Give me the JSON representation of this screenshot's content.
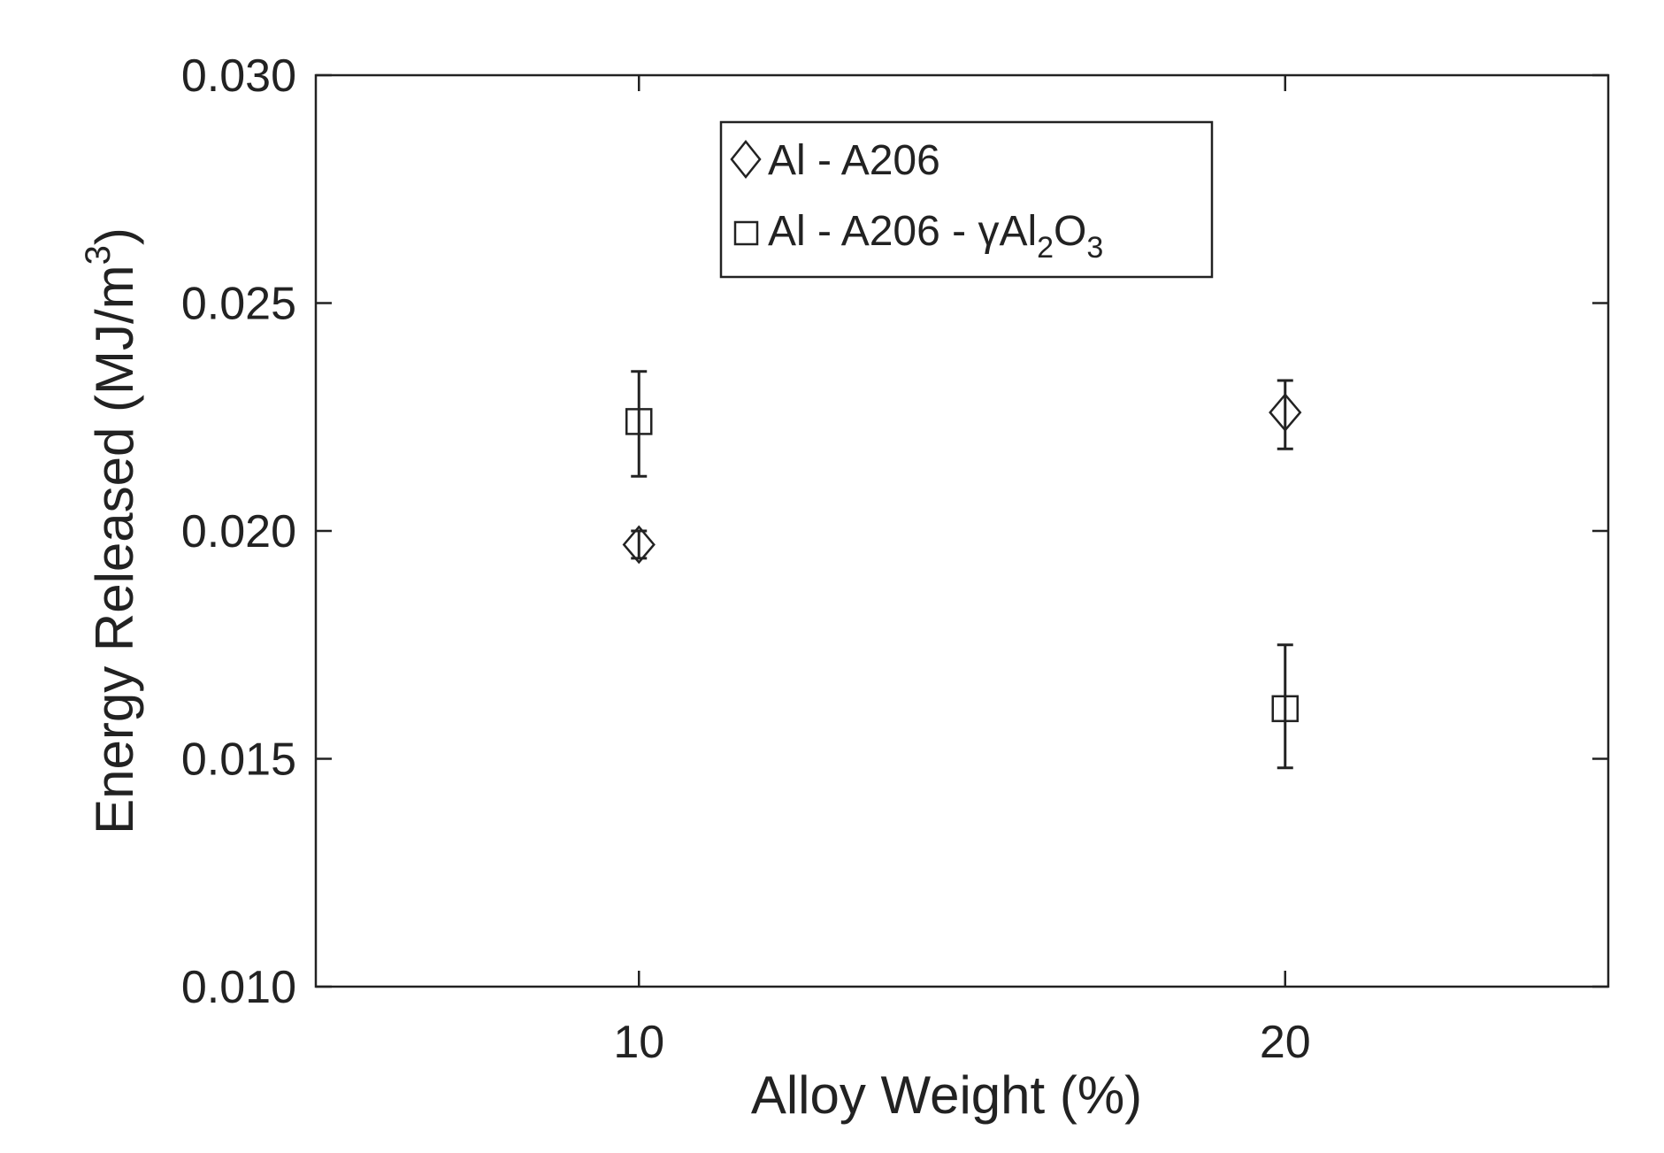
{
  "chart_data": {
    "type": "scatter",
    "title": "",
    "xlabel": "Alloy Weight (%)",
    "ylabel": {
      "text": "Energy Released (MJ/m",
      "superscript": "3",
      "close": ")"
    },
    "xlim": [
      5,
      25
    ],
    "ylim": [
      0.01,
      0.03
    ],
    "xticks": [
      10,
      20
    ],
    "xtick_labels": [
      "10",
      "20"
    ],
    "yticks": [
      0.01,
      0.015,
      0.02,
      0.025,
      0.03
    ],
    "ytick_labels": [
      "0.010",
      "0.015",
      "0.020",
      "0.025",
      "0.030"
    ],
    "grid": false,
    "legend_position": "top-center",
    "series": [
      {
        "name": "Al - A206",
        "name_parts": {
          "main": "Al - A206"
        },
        "marker": "diamond",
        "points": [
          {
            "x": 10,
            "y": 0.0197,
            "err_low": 0.0194,
            "err_high": 0.02
          },
          {
            "x": 20,
            "y": 0.0226,
            "err_low": 0.0218,
            "err_high": 0.0233
          }
        ]
      },
      {
        "name": "Al - A206 - γAl2O3",
        "name_parts": {
          "main": "Al - A206 - γAl",
          "sub1": "2",
          "mid": "O",
          "sub2": "3"
        },
        "marker": "square",
        "points": [
          {
            "x": 10,
            "y": 0.0224,
            "err_low": 0.0212,
            "err_high": 0.0235
          },
          {
            "x": 20,
            "y": 0.0161,
            "err_low": 0.0148,
            "err_high": 0.0175
          }
        ]
      }
    ]
  }
}
